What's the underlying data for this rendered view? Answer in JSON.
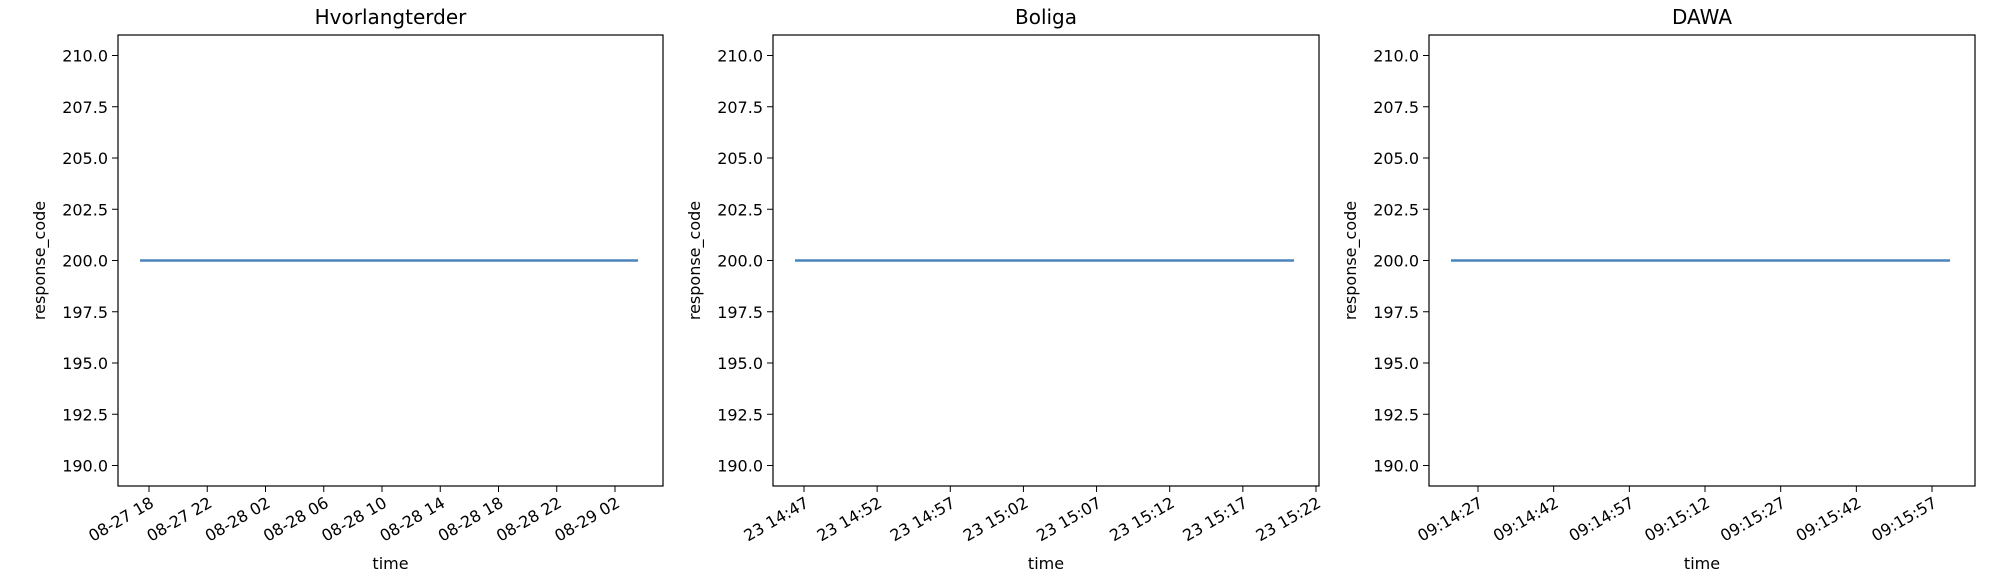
{
  "chart_data": [
    {
      "type": "line",
      "title": "Hvorlangterder",
      "xlabel": "time",
      "ylabel": "response_code",
      "ylim": [
        189.0,
        211.0
      ],
      "yticks": [
        190.0,
        192.5,
        195.0,
        197.5,
        200.0,
        202.5,
        205.0,
        207.5,
        210.0
      ],
      "ytick_labels": [
        "190.0",
        "192.5",
        "195.0",
        "197.5",
        "200.0",
        "202.5",
        "205.0",
        "207.5",
        "210.0"
      ],
      "x_ticks": [
        "08-27 18",
        "08-27 22",
        "08-28 02",
        "08-28 06",
        "08-28 10",
        "08-28 14",
        "08-28 18",
        "08-28 22",
        "08-29 02"
      ],
      "grid": false,
      "series": [
        {
          "x": [
            "08-27 17:30",
            "08-29 03:30"
          ],
          "y": [
            200.0,
            200.0
          ],
          "color": "#4c84bd"
        }
      ]
    },
    {
      "type": "line",
      "title": "Boliga",
      "xlabel": "time",
      "ylabel": "response_code",
      "ylim": [
        189.0,
        211.0
      ],
      "yticks": [
        190.0,
        192.5,
        195.0,
        197.5,
        200.0,
        202.5,
        205.0,
        207.5,
        210.0
      ],
      "ytick_labels": [
        "190.0",
        "192.5",
        "195.0",
        "197.5",
        "200.0",
        "202.5",
        "205.0",
        "207.5",
        "210.0"
      ],
      "x_ticks": [
        "23 14:47",
        "23 14:52",
        "23 14:57",
        "23 15:02",
        "23 15:07",
        "23 15:12",
        "23 15:17",
        "23 15:22"
      ],
      "grid": false,
      "series": [
        {
          "x": [
            "23 14:46",
            "23 15:21"
          ],
          "y": [
            200.0,
            200.0
          ],
          "color": "#4c84bd"
        }
      ]
    },
    {
      "type": "line",
      "title": "DAWA",
      "xlabel": "time",
      "ylabel": "response_code",
      "ylim": [
        189.0,
        211.0
      ],
      "yticks": [
        190.0,
        192.5,
        195.0,
        197.5,
        200.0,
        202.5,
        205.0,
        207.5,
        210.0
      ],
      "ytick_labels": [
        "190.0",
        "192.5",
        "195.0",
        "197.5",
        "200.0",
        "202.5",
        "205.0",
        "207.5",
        "210.0"
      ],
      "x_ticks": [
        "09:14:27",
        "09:14:42",
        "09:14:57",
        "09:15:12",
        "09:15:27",
        "09:15:42",
        "09:15:57"
      ],
      "grid": false,
      "series": [
        {
          "x": [
            "09:14:21",
            "09:16:00"
          ],
          "y": [
            200.0,
            200.0
          ],
          "color": "#4c84bd"
        }
      ]
    }
  ]
}
